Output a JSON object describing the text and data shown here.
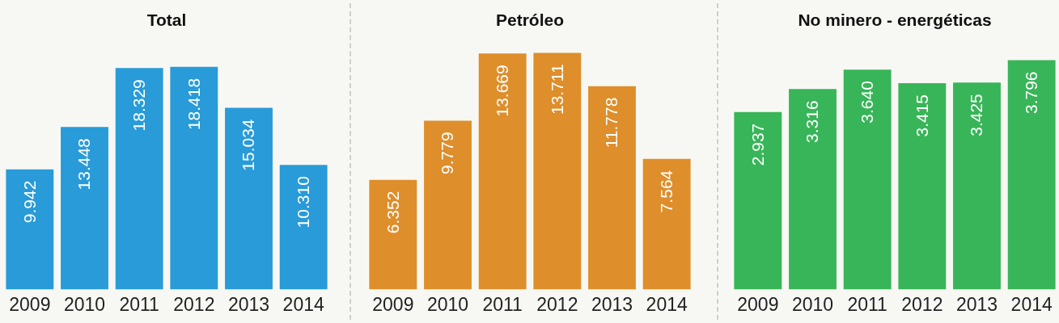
{
  "chart_data": [
    {
      "type": "bar",
      "title": "Total",
      "categories": [
        "2009",
        "2010",
        "2011",
        "2012",
        "2013",
        "2014"
      ],
      "values": [
        9942,
        13448,
        18329,
        18418,
        15034,
        10310
      ],
      "value_labels": [
        "9.942",
        "13.448",
        "18.329",
        "18.418",
        "15.034",
        "10.310"
      ],
      "color": "#289bd8",
      "tick_labels": "x"
    },
    {
      "type": "bar",
      "title": "Petróleo",
      "categories": [
        "2009",
        "2010",
        "2011",
        "2012",
        "2013",
        "2014"
      ],
      "values": [
        6352,
        9779,
        13669,
        13711,
        11778,
        7564
      ],
      "value_labels": [
        "6.352",
        "9.779",
        "13.669",
        "13.711",
        "11.778",
        "7.564"
      ],
      "color": "#de8e2b",
      "tick_labels": "x"
    },
    {
      "type": "bar",
      "title": "No minero - energéticas",
      "categories": [
        "2009",
        "2010",
        "2011",
        "2012",
        "2013",
        "2014"
      ],
      "values": [
        2937,
        3316,
        3640,
        3415,
        3425,
        3796
      ],
      "value_labels": [
        "2.937",
        "3.316",
        "3.640",
        "3.415",
        "3.425",
        "3.796"
      ],
      "color": "#38b558",
      "tick_labels": "x"
    }
  ]
}
